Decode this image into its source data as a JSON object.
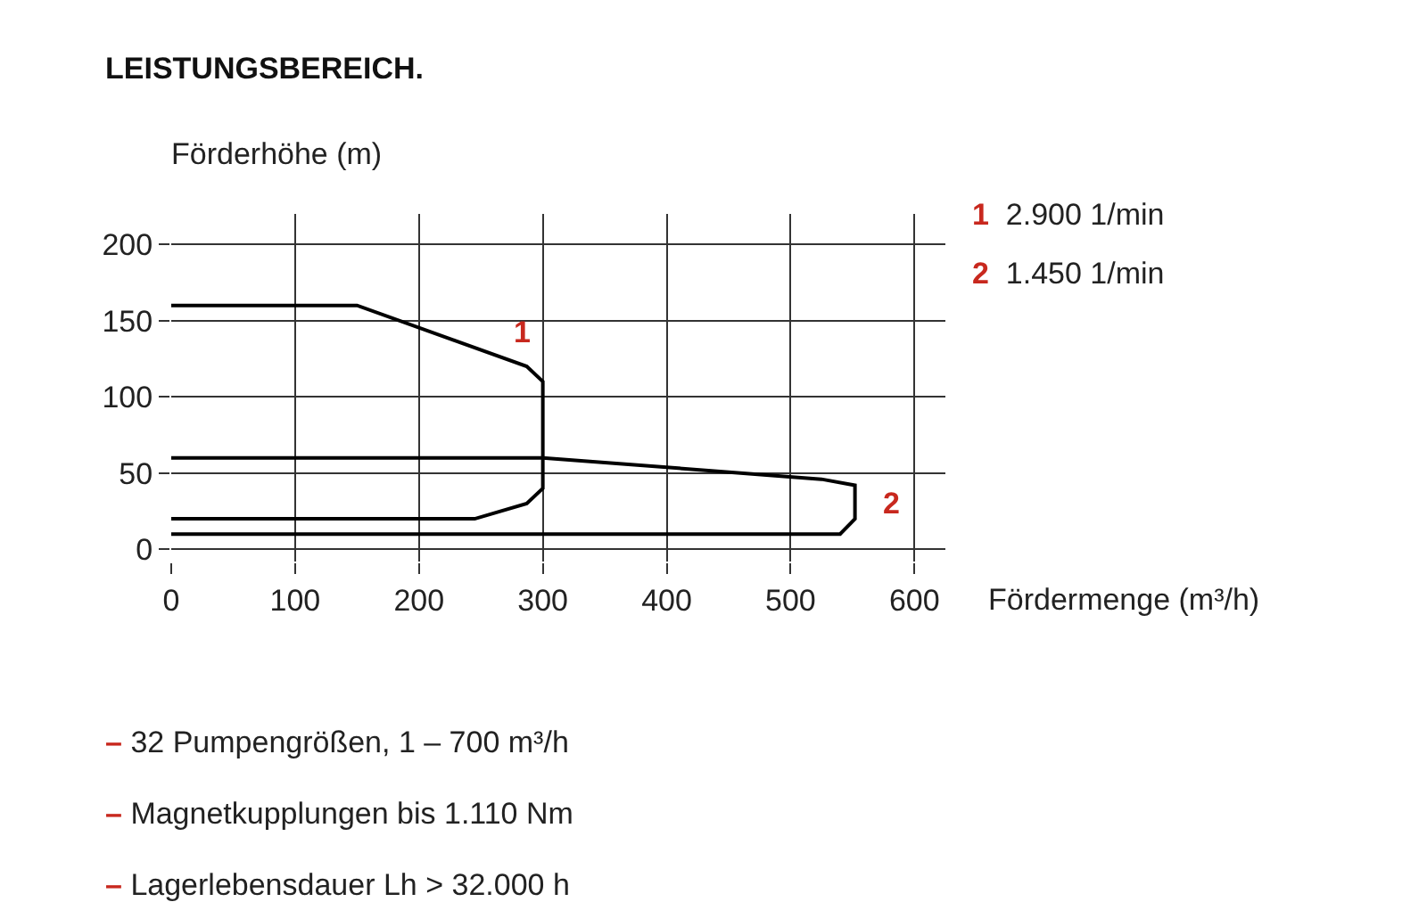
{
  "chart_data": {
    "type": "line",
    "title": "LEISTUNGSBEREICH.",
    "xlabel": "Fördermenge (m³/h)",
    "ylabel": "Förderhöhe (m)",
    "series": [
      {
        "name": "1",
        "color": "#000000",
        "x": [
          0,
          150,
          287,
          300,
          300,
          287,
          245,
          0
        ],
        "values": [
          160,
          160,
          120,
          110,
          40,
          30,
          20,
          20
        ]
      },
      {
        "name": "2",
        "color": "#000000",
        "x": [
          0,
          300,
          525,
          552,
          552,
          540,
          0
        ],
        "values": [
          60,
          60,
          46,
          42,
          20,
          10,
          10
        ]
      }
    ],
    "annotations": [
      "2.900 1/min",
      "1.450 1/min",
      "– 32 Pumpengrößen, 1 – 700 m³/h",
      "– Magnetkupplungen bis 1.110 Nm",
      "– Lagerlebensdauer Lh > 32.000 h"
    ],
    "xlim": [
      0,
      625
    ],
    "ylim": [
      -8,
      220
    ],
    "xticks": [
      0,
      100,
      200,
      300,
      400,
      500,
      600
    ],
    "yticks": [
      0,
      50,
      100,
      150,
      200
    ],
    "grid": true,
    "legend": false,
    "marker": "none",
    "line_style": "solid"
  }
}
